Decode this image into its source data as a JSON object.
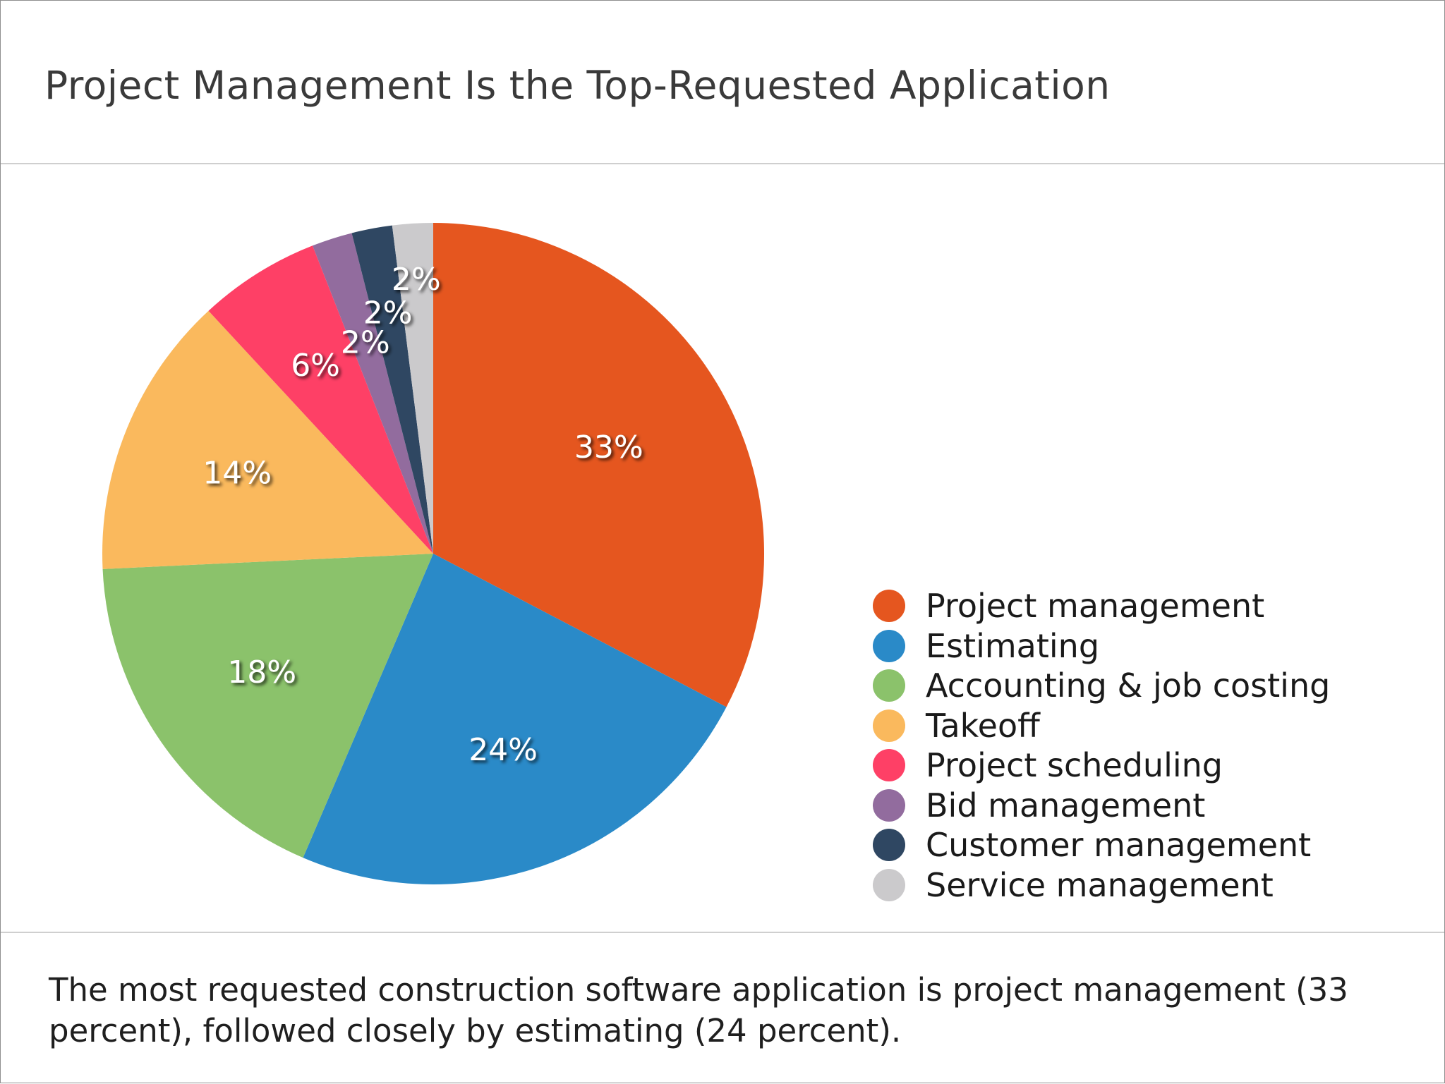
{
  "header": {
    "title": "Project Management Is the Top-Requested Application"
  },
  "chart_data": {
    "type": "pie",
    "title": "Project Management Is the Top-Requested Application",
    "legend_position": "right",
    "start_angle_deg": 0,
    "direction": "clockwise",
    "slices": [
      {
        "label": "Project management",
        "value": 33,
        "display": "33%",
        "color": "#e5561f"
      },
      {
        "label": "Estimating",
        "value": 24,
        "display": "24%",
        "color": "#2a8ac8"
      },
      {
        "label": "Accounting & job costing",
        "value": 18,
        "display": "18%",
        "color": "#8bc26b"
      },
      {
        "label": "Takeoff",
        "value": 14,
        "display": "14%",
        "color": "#fab95d"
      },
      {
        "label": "Project scheduling",
        "value": 6,
        "display": "6%",
        "color": "#fe4066"
      },
      {
        "label": "Bid management",
        "value": 2,
        "display": "2%",
        "color": "#926c9e"
      },
      {
        "label": "Customer management",
        "value": 2,
        "display": "2%",
        "color": "#2f4762"
      },
      {
        "label": "Service management",
        "value": 2,
        "display": "2%",
        "color": "#cbcacc"
      }
    ]
  },
  "footer": {
    "caption": "The most requested construction software application is project management (33 percent), followed closely by estimating (24 percent)."
  }
}
